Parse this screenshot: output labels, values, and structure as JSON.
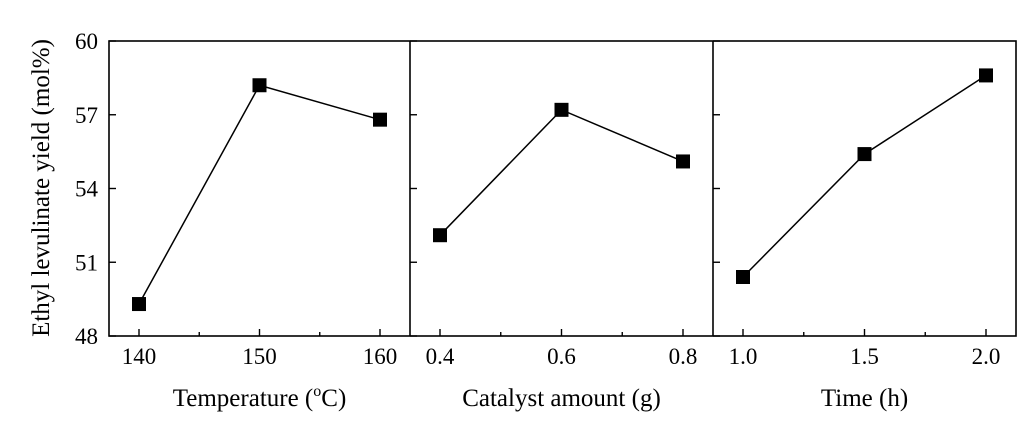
{
  "chart_data": {
    "type": "line",
    "ylabel": "Ethyl levulinate yield (mol%)",
    "ylim": [
      48,
      60
    ],
    "yticks": [
      48,
      51,
      54,
      57,
      60
    ],
    "marker": "square",
    "color": "#000000",
    "panels": [
      {
        "xlabel": "Temperature (°C)",
        "xlabel_parts": {
          "pre": "Temperature (",
          "sup": "o",
          "post": "C)"
        },
        "x": [
          140,
          150,
          160
        ],
        "xtick_labels": [
          "140",
          "150",
          "160"
        ],
        "y": [
          49.3,
          58.2,
          56.8
        ]
      },
      {
        "xlabel": "Catalyst amount (g)",
        "x": [
          0.4,
          0.6,
          0.8
        ],
        "xtick_labels": [
          "0.4",
          "0.6",
          "0.8"
        ],
        "y": [
          52.1,
          57.2,
          55.1
        ]
      },
      {
        "xlabel": "Time (h)",
        "x": [
          1.0,
          1.5,
          2.0
        ],
        "xtick_labels": [
          "1.0",
          "1.5",
          "2.0"
        ],
        "y": [
          50.4,
          55.4,
          58.6
        ]
      }
    ]
  }
}
